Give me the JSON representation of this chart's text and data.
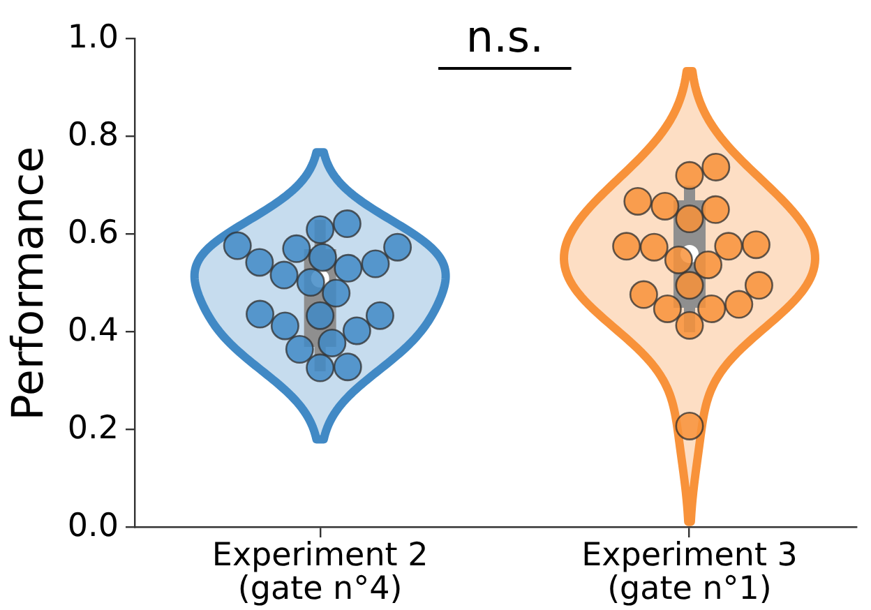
{
  "chart_data": {
    "type": "box",
    "ylabel": "Performance",
    "categories": [
      "Experiment 2\n(gate n°4)",
      "Experiment 3\n(gate n°1)"
    ],
    "colors": [
      "#8f8f8f",
      "#8f8f8f"
    ],
    "boxes": [
      {
        "low": 0.32,
        "q1": 0.37,
        "median": 0.51,
        "q3": 0.57,
        "high": 0.63
      },
      {
        "low": 0.4,
        "q1": 0.45,
        "median": 0.56,
        "q3": 0.67,
        "high": 0.7
      }
    ],
    "series": [
      {
        "type": "scatter",
        "color": "#4189c5",
        "x": [
          "Experiment 2\n(gate n°4)",
          "Experiment 2\n(gate n°4)",
          "Experiment 2\n(gate n°4)",
          "Experiment 2\n(gate n°4)",
          "Experiment 2\n(gate n°4)",
          "Experiment 2\n(gate n°4)",
          "Experiment 2\n(gate n°4)",
          "Experiment 2\n(gate n°4)",
          "Experiment 2\n(gate n°4)",
          "Experiment 2\n(gate n°4)",
          "Experiment 2\n(gate n°4)",
          "Experiment 2\n(gate n°4)",
          "Experiment 2\n(gate n°4)",
          "Experiment 2\n(gate n°4)",
          "Experiment 2\n(gate n°4)",
          "Experiment 2\n(gate n°4)",
          "Experiment 2\n(gate n°4)",
          "Experiment 2\n(gate n°4)",
          "Experiment 2\n(gate n°4)",
          "Experiment 2\n(gate n°4)",
          "Experiment 2\n(gate n°4)"
        ],
        "values": [
          0.574,
          0.54,
          0.531,
          0.61,
          0.553,
          0.502,
          0.48,
          0.571,
          0.622,
          0.517,
          0.543,
          0.577,
          0.434,
          0.403,
          0.378,
          0.434,
          0.413,
          0.437,
          0.365,
          0.329,
          0.327
        ]
      },
      {
        "type": "scatter",
        "color": "#f8923a",
        "x": [
          "Experiment 3\n(gate n°1)",
          "Experiment 3\n(gate n°1)",
          "Experiment 3\n(gate n°1)",
          "Experiment 3\n(gate n°1)",
          "Experiment 3\n(gate n°1)",
          "Experiment 3\n(gate n°1)",
          "Experiment 3\n(gate n°1)",
          "Experiment 3\n(gate n°1)",
          "Experiment 3\n(gate n°1)",
          "Experiment 3\n(gate n°1)",
          "Experiment 3\n(gate n°1)",
          "Experiment 3\n(gate n°1)",
          "Experiment 3\n(gate n°1)",
          "Experiment 3\n(gate n°1)",
          "Experiment 3\n(gate n°1)",
          "Experiment 3\n(gate n°1)",
          "Experiment 3\n(gate n°1)",
          "Experiment 3\n(gate n°1)",
          "Experiment 3\n(gate n°1)",
          "Experiment 3\n(gate n°1)"
        ],
        "values": [
          0.738,
          0.721,
          0.651,
          0.632,
          0.658,
          0.668,
          0.579,
          0.576,
          0.538,
          0.548,
          0.574,
          0.576,
          0.496,
          0.496,
          0.457,
          0.448,
          0.448,
          0.477,
          0.414,
          0.208
        ]
      }
    ],
    "ylim": [
      0,
      1
    ],
    "yticks": [
      {
        "value": 0,
        "label": "0.0"
      },
      0.2,
      0.4,
      0.6,
      0.8,
      {
        "value": 1,
        "label": "1.0"
      }
    ],
    "marker": "circle",
    "annotations": [
      "n.s."
    ]
  }
}
